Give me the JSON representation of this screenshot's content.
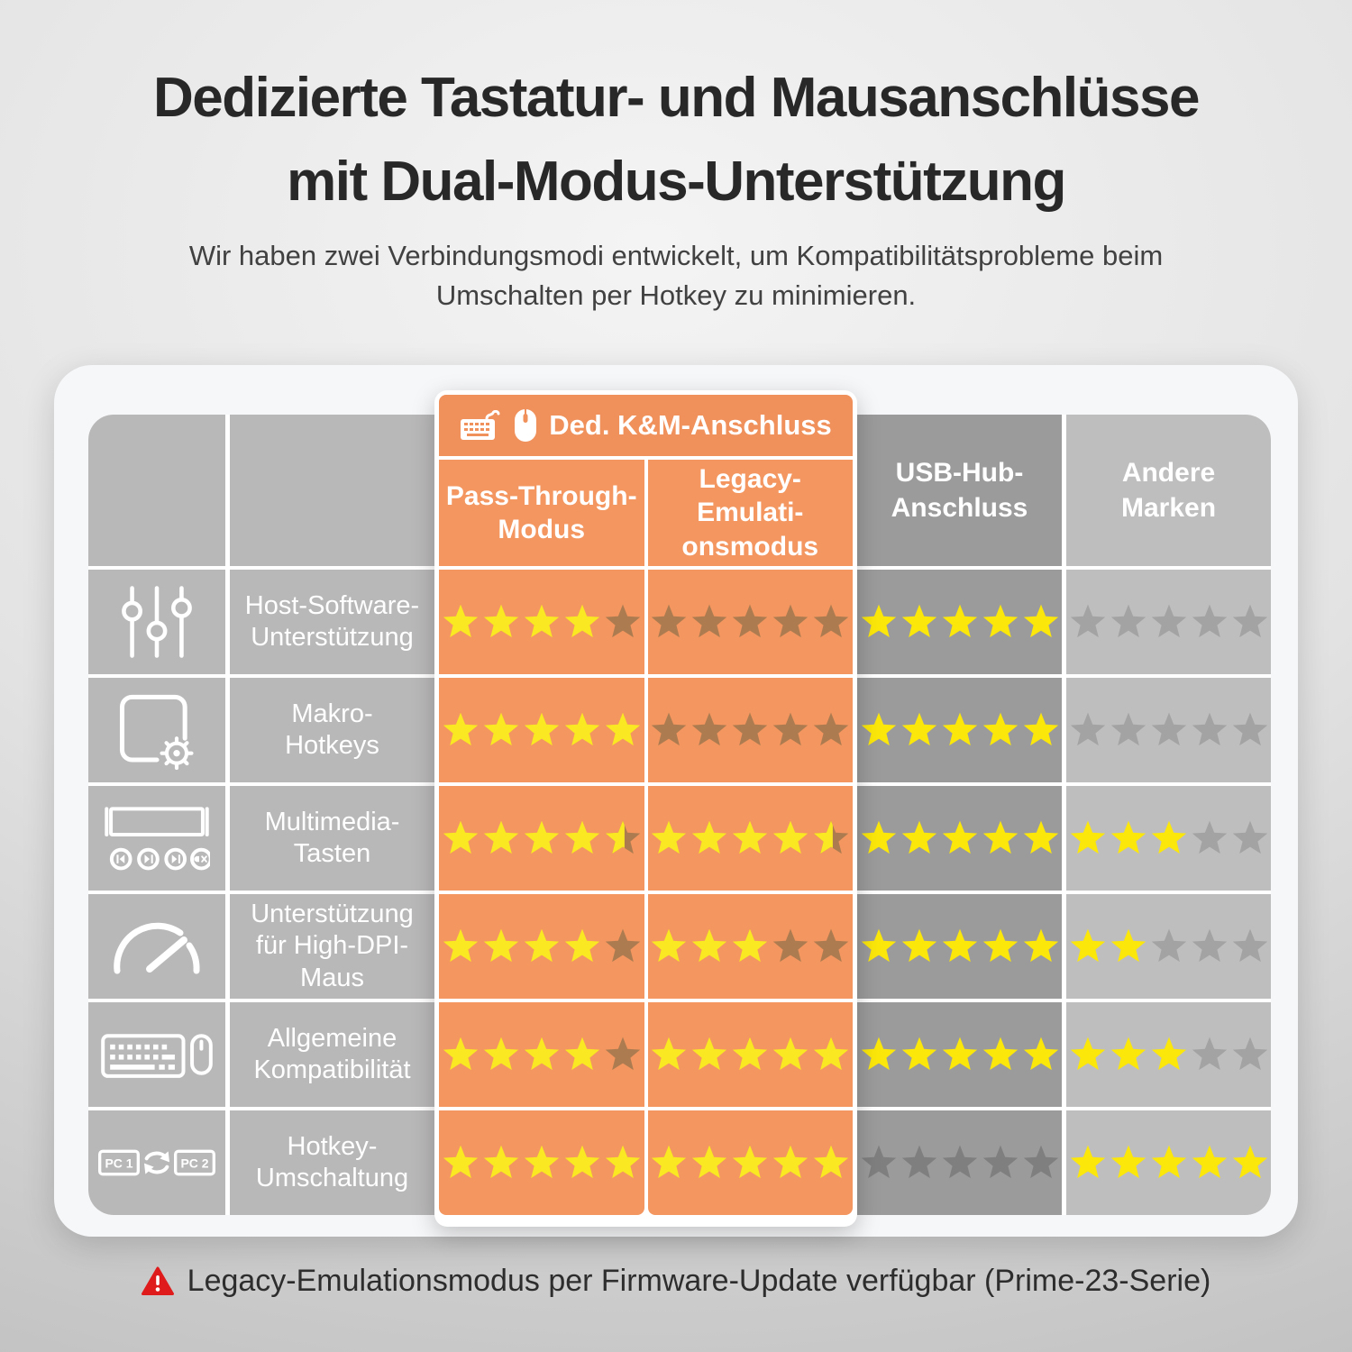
{
  "page": {
    "title": "Dedizierte Tastatur- und Mausanschlüsse\nmit Dual-Modus-Unterstützung",
    "subtitle": "Wir haben zwei Verbindungsmodi entwickelt, um Kompatibilitätsprobleme beim\nUmschalten per Hotkey zu minimieren.",
    "footnote": "Legacy-Emulationsmodus per Firmware-Update verfügbar (Prime-23-Serie)",
    "footnote_icon": "warning-icon"
  },
  "table": {
    "banner": {
      "label": "Ded. K&M-Anschluss",
      "icons": [
        "keyboard-icon",
        "mouse-icon"
      ]
    },
    "columns": [
      {
        "id": "pass-through",
        "label": "Pass-Through-\nModus",
        "group": "Ded. K&M-Anschluss"
      },
      {
        "id": "legacy-emulation",
        "label": "Legacy-\nEmulati-\nonsmodus",
        "group": "Ded. K&M-Anschluss"
      },
      {
        "id": "usb-hub",
        "label": "USB-Hub-\nAnschluss",
        "group": ""
      },
      {
        "id": "andere-marken",
        "label": "Andere\nMarken",
        "group": ""
      }
    ],
    "star_palettes": [
      {
        "lit": "#f9e822",
        "dim": "#ac7b50"
      },
      {
        "lit": "#f9e822",
        "dim": "#ac7b50"
      },
      {
        "lit": "#fbe70a",
        "dim": "#7f7f7f"
      },
      {
        "lit": "#fbe70a",
        "dim": "#a3a3a3"
      }
    ],
    "rating_scale_max": 5,
    "rows": [
      {
        "icon": "sliders-icon",
        "label": "Host-Software-\nUnterstützung",
        "ratings": [
          4,
          0,
          5,
          0
        ]
      },
      {
        "icon": "macro-box-icon",
        "label": "Makro-\nHotkeys",
        "ratings": [
          5,
          0,
          5,
          0
        ]
      },
      {
        "icon": "multimedia-keys-icon",
        "label": "Multimedia-\nTasten",
        "ratings": [
          4.5,
          4.5,
          5,
          3
        ]
      },
      {
        "icon": "speed-gauge-icon",
        "label": "Unterstützung\nfür High-DPI-\nMaus",
        "ratings": [
          4,
          3,
          5,
          2
        ]
      },
      {
        "icon": "keyboard-mouse-icon",
        "label": "Allgemeine\nKompatibilität",
        "ratings": [
          4,
          5,
          5,
          3
        ]
      },
      {
        "icon": "pc-switch-icon",
        "label": "Hotkey-\nUmschaltung",
        "ratings": [
          5,
          5,
          0,
          5
        ],
        "pc1_label": "PC 1",
        "pc2_label": "PC 2"
      }
    ]
  },
  "colors": {
    "orange": "#f3965f",
    "orange_banner": "#f0905a",
    "orange_star_dim": "#ac7b50",
    "gray_left_cols": "#b9b8b8",
    "gray_usb_col": "#9b9b9b",
    "gray_usb_star_dim": "#7f7f7f",
    "gray_andere_col": "#bfbebe",
    "gray_andere_star_dim": "#a3a3a3",
    "star_lit_yellow": "#f9e822",
    "warning_red": "#df1b1b",
    "title_text": "#282828",
    "header_text": "#ffffff"
  },
  "chart_data": {
    "type": "table",
    "title": "Dedizierte Tastatur- und Mausanschlüsse mit Dual-Modus-Unterstützung",
    "columns": [
      "Ded. K&M-Anschluss — Pass-Through-Modus",
      "Ded. K&M-Anschluss — Legacy-Emulationsmodus",
      "USB-Hub-Anschluss",
      "Andere Marken"
    ],
    "rows": [
      "Host-Software-Unterstützung",
      "Makro-Hotkeys",
      "Multimedia-Tasten",
      "Unterstützung für High-DPI-Maus",
      "Allgemeine Kompatibilität",
      "Hotkey-Umschaltung"
    ],
    "ratings_max": 5,
    "ratings": [
      [
        4,
        0,
        5,
        0
      ],
      [
        5,
        0,
        5,
        0
      ],
      [
        4.5,
        4.5,
        5,
        3
      ],
      [
        4,
        3,
        5,
        2
      ],
      [
        4,
        5,
        5,
        3
      ],
      [
        5,
        5,
        0,
        5
      ]
    ]
  }
}
